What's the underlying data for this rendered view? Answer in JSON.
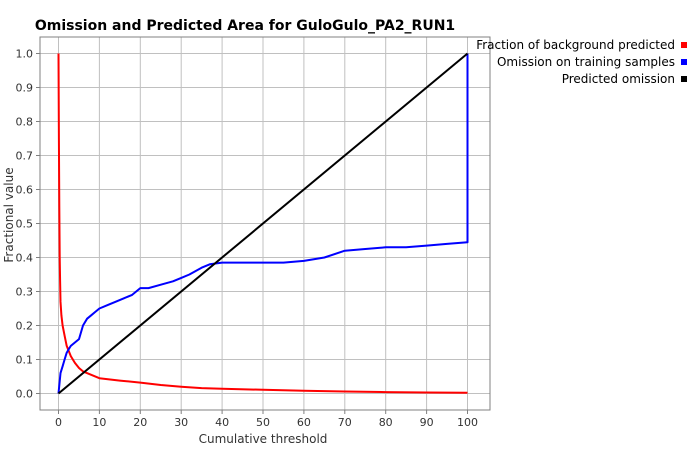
{
  "chart_data": {
    "type": "line",
    "title": "Omission and Predicted Area for GuloGulo_PA2_RUN1",
    "xlabel": "Cumulative threshold",
    "ylabel": "Fractional value",
    "xlim": [
      0,
      100
    ],
    "ylim": [
      0,
      1.0
    ],
    "xticks": [
      "0",
      "10",
      "20",
      "30",
      "40",
      "50",
      "60",
      "70",
      "80",
      "90",
      "100"
    ],
    "yticks": [
      "0.0",
      "0.1",
      "0.2",
      "0.3",
      "0.4",
      "0.5",
      "0.6",
      "0.7",
      "0.8",
      "0.9",
      "1.0"
    ],
    "grid": true,
    "legend_position": "right",
    "series": [
      {
        "name": "Fraction of background predicted",
        "color": "#ff0000",
        "x": [
          0,
          0.1,
          0.2,
          0.3,
          0.4,
          0.5,
          0.7,
          1,
          1.5,
          2,
          3,
          4,
          5,
          6,
          8,
          10,
          15,
          20,
          25,
          30,
          35,
          40,
          50,
          60,
          70,
          80,
          90,
          100
        ],
        "y": [
          1.0,
          0.75,
          0.55,
          0.4,
          0.33,
          0.27,
          0.23,
          0.2,
          0.17,
          0.14,
          0.11,
          0.09,
          0.075,
          0.065,
          0.055,
          0.045,
          0.038,
          0.032,
          0.025,
          0.02,
          0.016,
          0.014,
          0.011,
          0.008,
          0.006,
          0.004,
          0.003,
          0.002
        ]
      },
      {
        "name": "Omission on training samples",
        "color": "#0000ff",
        "x": [
          0,
          0.5,
          1,
          1.5,
          2,
          2.5,
          3,
          4,
          5,
          6,
          7,
          8,
          9,
          10,
          12,
          14,
          16,
          18,
          20,
          22,
          25,
          28,
          30,
          32,
          35,
          37,
          40,
          45,
          50,
          55,
          60,
          65,
          70,
          75,
          80,
          85,
          90,
          95,
          100,
          100
        ],
        "y": [
          0.0,
          0.06,
          0.08,
          0.1,
          0.12,
          0.13,
          0.14,
          0.15,
          0.16,
          0.2,
          0.22,
          0.23,
          0.24,
          0.25,
          0.26,
          0.27,
          0.28,
          0.29,
          0.31,
          0.31,
          0.32,
          0.33,
          0.34,
          0.35,
          0.37,
          0.38,
          0.385,
          0.385,
          0.385,
          0.385,
          0.39,
          0.4,
          0.42,
          0.425,
          0.43,
          0.43,
          0.435,
          0.44,
          0.445,
          1.0
        ]
      },
      {
        "name": "Predicted omission",
        "color": "#000000",
        "x": [
          0,
          100
        ],
        "y": [
          0.0,
          1.0
        ]
      }
    ]
  }
}
